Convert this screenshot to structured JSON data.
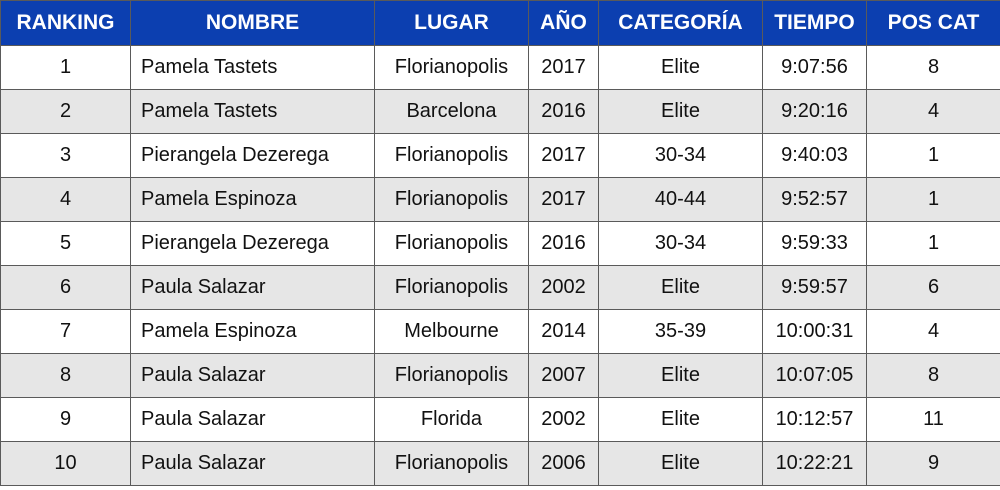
{
  "table": {
    "headers": [
      "RANKING",
      "NOMBRE",
      "LUGAR",
      "AÑO",
      "CATEGORÍA",
      "TIEMPO",
      "POS CAT"
    ],
    "rows": [
      [
        "1",
        "Pamela Tastets",
        "Florianopolis",
        "2017",
        "Elite",
        "9:07:56",
        "8"
      ],
      [
        "2",
        "Pamela Tastets",
        "Barcelona",
        "2016",
        "Elite",
        "9:20:16",
        "4"
      ],
      [
        "3",
        "Pierangela Dezerega",
        "Florianopolis",
        "2017",
        "30-34",
        "9:40:03",
        "1"
      ],
      [
        "4",
        "Pamela Espinoza",
        "Florianopolis",
        "2017",
        "40-44",
        "9:52:57",
        "1"
      ],
      [
        "5",
        "Pierangela Dezerega",
        "Florianopolis",
        "2016",
        "30-34",
        "9:59:33",
        "1"
      ],
      [
        "6",
        "Paula Salazar",
        "Florianopolis",
        "2002",
        "Elite",
        "9:59:57",
        "6"
      ],
      [
        "7",
        "Pamela Espinoza",
        "Melbourne",
        "2014",
        "35-39",
        "10:00:31",
        "4"
      ],
      [
        "8",
        "Paula Salazar",
        "Florianopolis",
        "2007",
        "Elite",
        "10:07:05",
        "8"
      ],
      [
        "9",
        "Paula Salazar",
        "Florida",
        "2002",
        "Elite",
        "10:12:57",
        "11"
      ],
      [
        "10",
        "Paula Salazar",
        "Florianopolis",
        "2006",
        "Elite",
        "10:22:21",
        "9"
      ]
    ]
  },
  "colors": {
    "header_bg": "#0c3fb0",
    "header_text": "#ffffff",
    "row_alt_bg": "#e6e6e6",
    "row_bg": "#ffffff",
    "border": "#5a5a5a"
  }
}
